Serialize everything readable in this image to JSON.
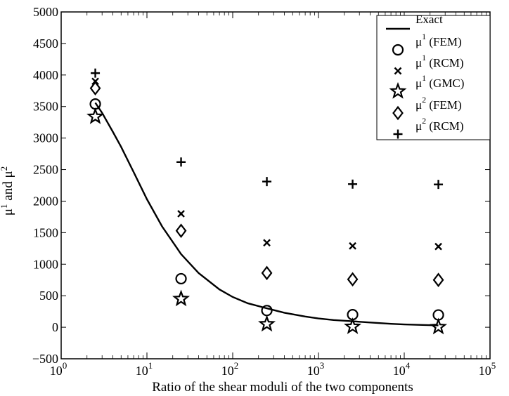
{
  "chart_data": {
    "type": "scatter",
    "title": "",
    "xlabel": "Ratio of the shear moduli of the two components",
    "ylabel": {
      "base": "μ",
      "sup1": "1",
      "mid": " and μ",
      "sup2": "2"
    },
    "xscale": "log",
    "xlim": [
      1,
      100000
    ],
    "ylim": [
      -500,
      5000
    ],
    "xticks": [
      {
        "base": "10",
        "exp": "0",
        "value": 1
      },
      {
        "base": "10",
        "exp": "1",
        "value": 10
      },
      {
        "base": "10",
        "exp": "2",
        "value": 100
      },
      {
        "base": "10",
        "exp": "3",
        "value": 1000
      },
      {
        "base": "10",
        "exp": "4",
        "value": 10000
      },
      {
        "base": "10",
        "exp": "5",
        "value": 100000
      }
    ],
    "yticks": [
      {
        "label": "−500",
        "value": -500
      },
      {
        "label": "0",
        "value": 0
      },
      {
        "label": "500",
        "value": 500
      },
      {
        "label": "1000",
        "value": 1000
      },
      {
        "label": "1500",
        "value": 1500
      },
      {
        "label": "2000",
        "value": 2000
      },
      {
        "label": "2500",
        "value": 2500
      },
      {
        "label": "3000",
        "value": 3000
      },
      {
        "label": "3500",
        "value": 3500
      },
      {
        "label": "4000",
        "value": 4000
      },
      {
        "label": "4500",
        "value": 4500
      },
      {
        "label": "5000",
        "value": 5000
      }
    ],
    "legend_position": "top-right",
    "series": [
      {
        "key": "exact",
        "name": "Exact",
        "marker": "line",
        "label": {
          "text": "Exact"
        },
        "curve_x": [
          2.5,
          3,
          4,
          5,
          7,
          10,
          15,
          25,
          40,
          70,
          100,
          150,
          250,
          400,
          700,
          1000,
          1500,
          2500,
          4000,
          7000,
          10000,
          15000,
          25000
        ],
        "curve_y": [
          3560,
          3400,
          3100,
          2860,
          2460,
          2030,
          1600,
          1160,
          860,
          600,
          480,
          380,
          300,
          230,
          170,
          140,
          115,
          95,
          75,
          55,
          45,
          38,
          30
        ]
      },
      {
        "key": "mu1_fem",
        "name": "μ1 (FEM)",
        "marker": "circle",
        "label": {
          "base": "μ",
          "sup": "1",
          "rest": " (FEM)"
        },
        "x": [
          2.5,
          25,
          250,
          2500,
          25000
        ],
        "y": [
          3540,
          770,
          265,
          200,
          195
        ]
      },
      {
        "key": "mu1_rcm",
        "name": "μ1 (RCM)",
        "marker": "x",
        "label": {
          "base": "μ",
          "sup": "1",
          "rest": " (RCM)"
        },
        "x": [
          2.5,
          25,
          250,
          2500,
          25000
        ],
        "y": [
          3900,
          1800,
          1340,
          1290,
          1280
        ]
      },
      {
        "key": "mu1_gmc",
        "name": "μ1 (GMC)",
        "marker": "star",
        "label": {
          "base": "μ",
          "sup": "1",
          "rest": " (GMC)"
        },
        "x": [
          2.5,
          25,
          250,
          2500,
          25000
        ],
        "y": [
          3340,
          450,
          50,
          10,
          5
        ]
      },
      {
        "key": "mu2_fem",
        "name": "μ2 (FEM)",
        "marker": "diamond",
        "label": {
          "base": "μ",
          "sup": "2",
          "rest": " (FEM)"
        },
        "x": [
          2.5,
          25,
          250,
          2500,
          25000
        ],
        "y": [
          3790,
          1530,
          860,
          760,
          750
        ]
      },
      {
        "key": "mu2_rcm",
        "name": "μ2 (RCM)",
        "marker": "plus",
        "label": {
          "base": "μ",
          "sup": "2",
          "rest": " (RCM)"
        },
        "x": [
          2.5,
          25,
          250,
          2500,
          25000
        ],
        "y": [
          4030,
          2620,
          2310,
          2270,
          2265
        ]
      }
    ]
  }
}
